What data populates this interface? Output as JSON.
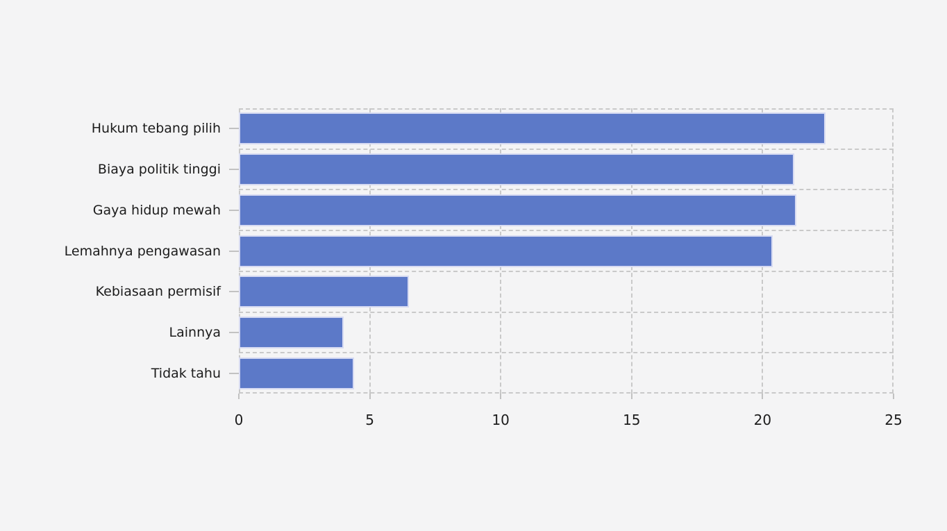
{
  "colors": {
    "background": "#f4f4f5",
    "bar_fill": "#5c79c8",
    "bar_border": "#d6daf2",
    "grid": "#c9c9c9",
    "tick_mark": "#c2c2c2",
    "text": "#1c1c1c"
  },
  "chart_data": {
    "type": "bar",
    "orientation": "horizontal",
    "title": "",
    "xlabel": "",
    "ylabel": "",
    "categories": [
      "Hukum tebang pilih",
      "Biaya politik tinggi",
      "Gaya hidup mewah",
      "Lemahnya pengawasan",
      "Kebiasaan permisif",
      "Lainnya",
      "Tidak tahu"
    ],
    "values": [
      22.4,
      21.2,
      21.3,
      20.4,
      6.5,
      4.0,
      4.4
    ],
    "xlim": [
      0,
      25
    ],
    "x_ticks": [
      0,
      5,
      10,
      15,
      20,
      25
    ],
    "grid": "dashed",
    "legend": "none"
  }
}
